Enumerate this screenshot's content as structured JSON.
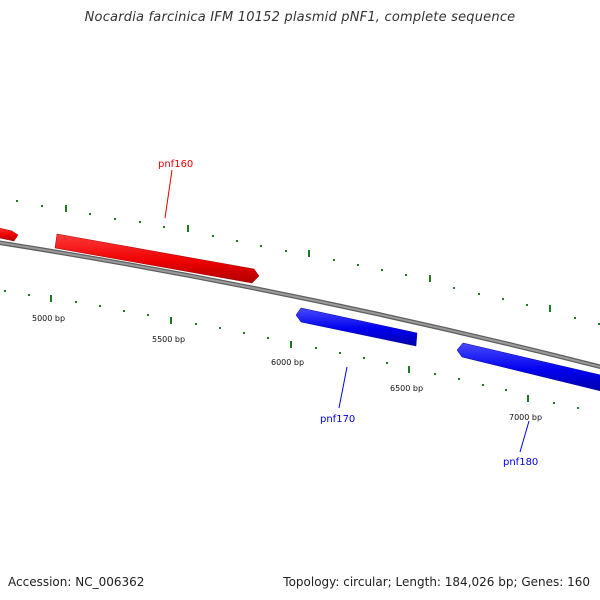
{
  "map": {
    "title": "Nocardia farcinica IFM 10152 plasmid pNF1, complete sequence",
    "accession_text": "Accession: NC_006362",
    "summary_text": "Topology: circular; Length: 184,026 bp; Genes: 160"
  },
  "coordinates": [
    {
      "label": "5000 bp"
    },
    {
      "label": "5500 bp"
    },
    {
      "label": "6000 bp"
    },
    {
      "label": "6500 bp"
    },
    {
      "label": "7000 bp"
    }
  ],
  "genes": [
    {
      "label": "pnf160",
      "strand": "forward"
    },
    {
      "label": "pnf170",
      "strand": "reverse"
    },
    {
      "label": "pnf180",
      "strand": "reverse"
    }
  ],
  "colors": {
    "forward_gene": "#ee0000",
    "reverse_gene": "#0000ee",
    "backbone": "#808080",
    "tick": "#228b22"
  }
}
